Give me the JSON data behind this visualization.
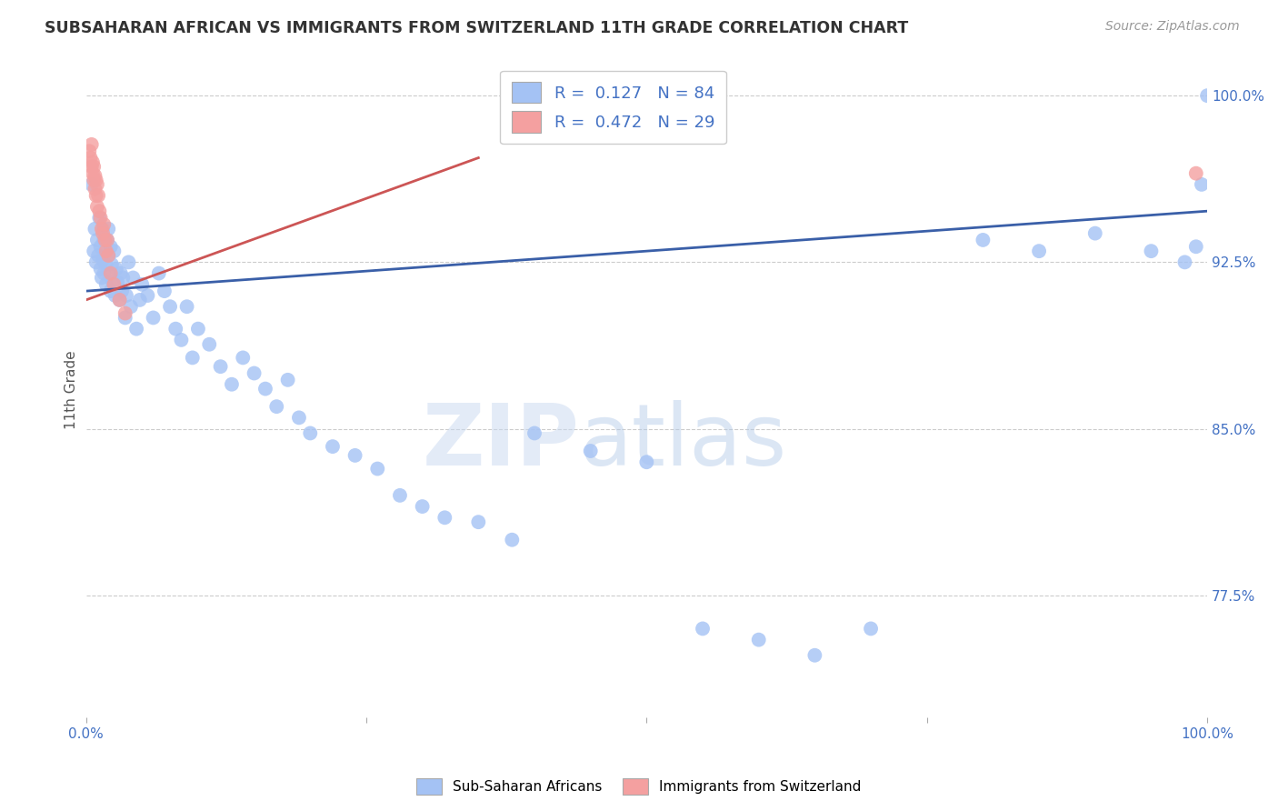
{
  "title": "SUBSAHARAN AFRICAN VS IMMIGRANTS FROM SWITZERLAND 11TH GRADE CORRELATION CHART",
  "source": "Source: ZipAtlas.com",
  "ylabel": "11th Grade",
  "ytick_labels": [
    "77.5%",
    "85.0%",
    "92.5%",
    "100.0%"
  ],
  "ytick_values": [
    0.775,
    0.85,
    0.925,
    1.0
  ],
  "legend_r1": "R =  0.127   N = 84",
  "legend_r2": "R =  0.472   N = 29",
  "blue_scatter_x": [
    0.005,
    0.007,
    0.008,
    0.009,
    0.01,
    0.011,
    0.012,
    0.013,
    0.013,
    0.014,
    0.015,
    0.015,
    0.016,
    0.016,
    0.017,
    0.018,
    0.018,
    0.019,
    0.02,
    0.02,
    0.021,
    0.022,
    0.022,
    0.023,
    0.024,
    0.025,
    0.026,
    0.027,
    0.028,
    0.03,
    0.031,
    0.032,
    0.033,
    0.035,
    0.036,
    0.038,
    0.04,
    0.042,
    0.045,
    0.048,
    0.05,
    0.055,
    0.06,
    0.065,
    0.07,
    0.075,
    0.08,
    0.085,
    0.09,
    0.095,
    0.1,
    0.11,
    0.12,
    0.13,
    0.14,
    0.15,
    0.16,
    0.17,
    0.18,
    0.19,
    0.2,
    0.22,
    0.24,
    0.26,
    0.28,
    0.3,
    0.32,
    0.35,
    0.38,
    0.4,
    0.45,
    0.5,
    0.55,
    0.6,
    0.65,
    0.7,
    0.8,
    0.85,
    0.9,
    0.95,
    0.98,
    0.99,
    0.995,
    1.0
  ],
  "blue_scatter_y": [
    0.96,
    0.93,
    0.94,
    0.925,
    0.935,
    0.928,
    0.945,
    0.922,
    0.932,
    0.918,
    0.94,
    0.926,
    0.935,
    0.92,
    0.93,
    0.915,
    0.924,
    0.935,
    0.94,
    0.928,
    0.92,
    0.932,
    0.912,
    0.924,
    0.916,
    0.93,
    0.91,
    0.922,
    0.916,
    0.908,
    0.92,
    0.912,
    0.918,
    0.9,
    0.91,
    0.925,
    0.905,
    0.918,
    0.895,
    0.908,
    0.915,
    0.91,
    0.9,
    0.92,
    0.912,
    0.905,
    0.895,
    0.89,
    0.905,
    0.882,
    0.895,
    0.888,
    0.878,
    0.87,
    0.882,
    0.875,
    0.868,
    0.86,
    0.872,
    0.855,
    0.848,
    0.842,
    0.838,
    0.832,
    0.82,
    0.815,
    0.81,
    0.808,
    0.8,
    0.848,
    0.84,
    0.835,
    0.76,
    0.755,
    0.748,
    0.76,
    0.935,
    0.93,
    0.938,
    0.93,
    0.925,
    0.932,
    0.96,
    1.0
  ],
  "pink_scatter_x": [
    0.003,
    0.004,
    0.005,
    0.005,
    0.006,
    0.006,
    0.007,
    0.007,
    0.008,
    0.008,
    0.009,
    0.009,
    0.01,
    0.01,
    0.011,
    0.012,
    0.013,
    0.014,
    0.015,
    0.016,
    0.017,
    0.018,
    0.019,
    0.02,
    0.022,
    0.025,
    0.03,
    0.035,
    0.99
  ],
  "pink_scatter_y": [
    0.975,
    0.972,
    0.968,
    0.978,
    0.965,
    0.97,
    0.962,
    0.968,
    0.958,
    0.964,
    0.955,
    0.962,
    0.96,
    0.95,
    0.955,
    0.948,
    0.945,
    0.94,
    0.938,
    0.942,
    0.935,
    0.93,
    0.935,
    0.928,
    0.92,
    0.915,
    0.908,
    0.902,
    0.965
  ],
  "blue_line_x": [
    0.0,
    1.0
  ],
  "blue_line_y": [
    0.912,
    0.948
  ],
  "pink_line_x": [
    0.0,
    0.35
  ],
  "pink_line_y": [
    0.908,
    0.972
  ],
  "blue_color": "#3a5fa8",
  "blue_scatter_color": "#a4c2f4",
  "pink_color": "#cc5555",
  "pink_scatter_color": "#f4a0a0",
  "bg_color": "#ffffff",
  "grid_color": "#cccccc",
  "watermark_zip": "ZIP",
  "watermark_atlas": "atlas",
  "xlim": [
    0.0,
    1.0
  ],
  "ylim": [
    0.72,
    1.015
  ]
}
